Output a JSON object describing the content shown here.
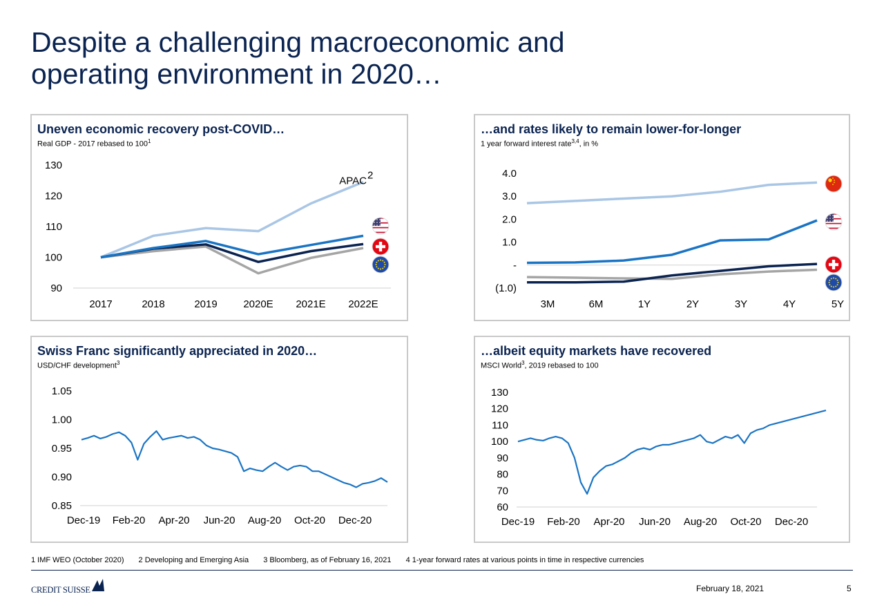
{
  "page": {
    "title_line1": "Despite a challenging macroeconomic and",
    "title_line2": "operating environment in 2020…",
    "date": "February 18, 2021",
    "page_number": "5",
    "footnotes": [
      "1 IMF WEO (October 2020)",
      "2 Developing and Emerging Asia",
      "3 Bloomberg, as of February 16, 2021",
      "4 1-year forward rates at various points in time in respective currencies"
    ],
    "logo_text": "CREDIT SUISSE",
    "colors": {
      "navy": "#0a2350",
      "mid_blue": "#1a74c4",
      "light_blue": "#a9c6e5",
      "grey": "#a5a5a5",
      "panel_border": "#c9c9c9"
    }
  },
  "panels": {
    "gdp": {
      "title": "Uneven economic recovery post-COVID…",
      "subtitle": "Real GDP - 2017 rebased to 100",
      "subtitle_sup": "1"
    },
    "rates": {
      "title": "…and rates likely to remain lower-for-longer",
      "subtitle": "1 year forward interest rate",
      "subtitle_sup": "3,4",
      "subtitle_suffix": ", in %"
    },
    "chf": {
      "title": "Swiss Franc significantly appreciated in 2020…",
      "subtitle": "USD/CHF development",
      "subtitle_sup": "3"
    },
    "msci": {
      "title": "…albeit equity markets have recovered",
      "subtitle": "MSCI World",
      "subtitle_sup": "3",
      "subtitle_suffix": ", 2019 rebased to 100"
    }
  },
  "chart_data": [
    {
      "type": "line",
      "title": "Uneven economic recovery post-COVID…",
      "categories": [
        "2017",
        "2018",
        "2019",
        "2020E",
        "2021E",
        "2022E"
      ],
      "ylim": [
        90,
        130
      ],
      "yticks": [
        "130",
        "120",
        "110",
        "100",
        "90"
      ],
      "series": [
        {
          "name": "APAC",
          "name_sup": "2",
          "color": "#a9c6e5",
          "values": [
            100,
            107,
            109.5,
            108.5,
            117.5,
            124.5
          ]
        },
        {
          "icon": "us-flag-icon",
          "color": "#1a74c4",
          "values": [
            100,
            103,
            105.3,
            101,
            104,
            107
          ]
        },
        {
          "icon": "swiss-flag-icon",
          "color": "#0a2350",
          "values": [
            100,
            102.8,
            104.2,
            98.5,
            102,
            104.3
          ]
        },
        {
          "icon": "eu-flag-icon",
          "color": "#a5a5a5",
          "values": [
            100,
            102,
            103.5,
            94.8,
            99.8,
            103
          ]
        }
      ]
    },
    {
      "type": "line",
      "title": "…and rates likely to remain lower-for-longer",
      "categories": [
        "3M",
        "6M",
        "1Y",
        "2Y",
        "3Y",
        "4Y",
        "5Y"
      ],
      "ylim": [
        -1.0,
        4.0
      ],
      "yticks": [
        "4.0",
        "3.0",
        "2.0",
        "1.0",
        "-",
        "(1.0)"
      ],
      "series": [
        {
          "icon": "china-flag-icon",
          "color": "#a9c6e5",
          "values": [
            2.7,
            2.8,
            2.9,
            3.0,
            3.2,
            3.5,
            3.6
          ]
        },
        {
          "icon": "us-flag-icon",
          "color": "#1a74c4",
          "values": [
            0.1,
            0.12,
            0.2,
            0.45,
            1.08,
            1.12,
            1.95
          ]
        },
        {
          "icon": "swiss-flag-icon",
          "color": "#0a2350",
          "values": [
            -0.75,
            -0.75,
            -0.72,
            -0.45,
            -0.25,
            -0.05,
            0.05
          ]
        },
        {
          "icon": "eu-flag-icon",
          "color": "#a5a5a5",
          "values": [
            -0.52,
            -0.55,
            -0.58,
            -0.6,
            -0.4,
            -0.28,
            -0.2
          ]
        }
      ]
    },
    {
      "type": "line",
      "title": "Swiss Franc significantly appreciated in 2020…",
      "x_ticks": [
        "Dec-19",
        "Feb-20",
        "Apr-20",
        "Jun-20",
        "Aug-20",
        "Oct-20",
        "Dec-20"
      ],
      "ylim": [
        0.85,
        1.05
      ],
      "yticks": [
        "1.05",
        "1.00",
        "0.95",
        "0.90",
        "0.85"
      ],
      "series": [
        {
          "color": "#1a74c4",
          "values": [
            0.965,
            0.968,
            0.972,
            0.967,
            0.97,
            0.975,
            0.978,
            0.972,
            0.96,
            0.93,
            0.958,
            0.97,
            0.98,
            0.965,
            0.968,
            0.97,
            0.972,
            0.968,
            0.97,
            0.965,
            0.955,
            0.95,
            0.948,
            0.945,
            0.942,
            0.935,
            0.91,
            0.915,
            0.912,
            0.91,
            0.918,
            0.925,
            0.918,
            0.912,
            0.918,
            0.92,
            0.918,
            0.91,
            0.91,
            0.905,
            0.9,
            0.895,
            0.89,
            0.887,
            0.882,
            0.888,
            0.89,
            0.893,
            0.898,
            0.891
          ]
        }
      ]
    },
    {
      "type": "line",
      "title": "…albeit equity markets have recovered",
      "x_ticks": [
        "Dec-19",
        "Feb-20",
        "Apr-20",
        "Jun-20",
        "Aug-20",
        "Oct-20",
        "Dec-20"
      ],
      "ylim": [
        60,
        130
      ],
      "yticks": [
        "130",
        "120",
        "110",
        "100",
        "90",
        "80",
        "70",
        "60"
      ],
      "series": [
        {
          "color": "#1a74c4",
          "values": [
            100,
            101,
            102,
            101,
            100.5,
            102,
            103,
            102,
            99,
            90,
            75,
            68,
            78,
            82,
            85,
            86,
            88,
            90,
            93,
            95,
            96,
            95,
            97,
            98,
            98,
            99,
            100,
            101,
            102,
            104,
            100,
            99,
            101,
            103,
            102,
            104,
            99,
            105,
            107,
            108,
            110,
            111,
            112,
            113,
            114,
            115,
            116,
            117,
            118,
            119
          ]
        }
      ]
    }
  ]
}
